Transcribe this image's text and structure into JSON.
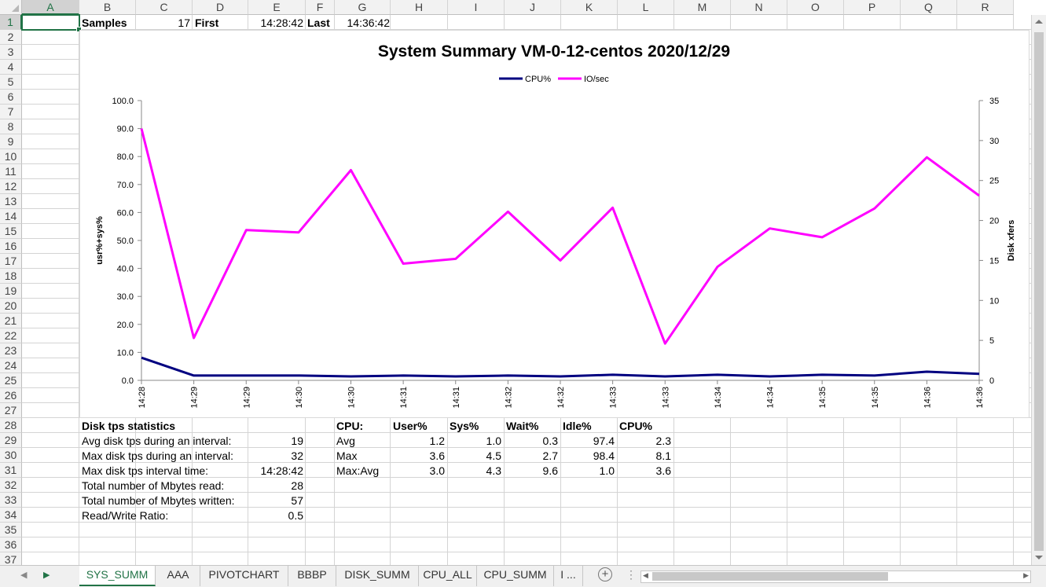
{
  "columns": [
    "A",
    "B",
    "C",
    "D",
    "E",
    "F",
    "G",
    "H",
    "I",
    "J",
    "K",
    "L",
    "M",
    "N",
    "O",
    "P",
    "Q",
    "R"
  ],
  "rows": [
    "1",
    "2",
    "3",
    "4",
    "5",
    "6",
    "7",
    "8",
    "9",
    "10",
    "11",
    "12",
    "13",
    "14",
    "15",
    "16",
    "17",
    "18",
    "19",
    "20",
    "21",
    "22",
    "23",
    "24",
    "25",
    "26",
    "27",
    "28",
    "29",
    "30",
    "31",
    "32",
    "33",
    "34",
    "35",
    "36",
    "37"
  ],
  "row1": {
    "samples_label": "Samples",
    "samples_value": "17",
    "first_label": "First",
    "first_value": "14:28:42",
    "last_label": "Last",
    "last_value": "14:36:42"
  },
  "disk_stats": {
    "title": "Disk tps statistics",
    "items": [
      {
        "label": "Avg disk tps during an interval:",
        "value": "19"
      },
      {
        "label": "Max disk tps during an interval:",
        "value": "32"
      },
      {
        "label": "Max disk tps interval time:",
        "value": "14:28:42"
      },
      {
        "label": "Total number of Mbytes read:",
        "value": "28"
      },
      {
        "label": "Total number of Mbytes written:",
        "value": "57"
      },
      {
        "label": "Read/Write Ratio:",
        "value": "0.5"
      }
    ]
  },
  "cpu_table": {
    "headers": [
      "CPU:",
      "User%",
      "Sys%",
      "Wait%",
      "Idle%",
      "CPU%"
    ],
    "rows": [
      {
        "label": "Avg",
        "values": [
          "1.2",
          "1.0",
          "0.3",
          "97.4",
          "2.3"
        ]
      },
      {
        "label": "Max",
        "values": [
          "3.6",
          "4.5",
          "2.7",
          "98.4",
          "8.1"
        ]
      },
      {
        "label": "Max:Avg",
        "values": [
          "3.0",
          "4.3",
          "9.6",
          "1.0",
          "3.6"
        ]
      }
    ]
  },
  "sheet_tabs": [
    "SYS_SUMM",
    "AAA",
    "PIVOTCHART",
    "BBBP",
    "DISK_SUMM",
    "CPU_ALL",
    "CPU_SUMM",
    "I ..."
  ],
  "active_tab": "SYS_SUMM",
  "colors": {
    "cpu": "#000080",
    "io": "#ff00ff",
    "excel_green": "#217346"
  },
  "chart_data": {
    "type": "line",
    "title": "System Summary VM-0-12-centos  2020/12/29",
    "ylabel": "usr%+sys%",
    "y2label": "Disk xfers",
    "ylim": [
      0,
      100
    ],
    "y2lim": [
      0,
      35
    ],
    "yticks": [
      "0.0",
      "10.0",
      "20.0",
      "30.0",
      "40.0",
      "50.0",
      "60.0",
      "70.0",
      "80.0",
      "90.0",
      "100.0"
    ],
    "y2ticks": [
      "0",
      "5",
      "10",
      "15",
      "20",
      "25",
      "30",
      "35"
    ],
    "legend_position": "top",
    "categories": [
      "14:28",
      "14:29",
      "14:29",
      "14:30",
      "14:30",
      "14:31",
      "14:31",
      "14:32",
      "14:32",
      "14:33",
      "14:33",
      "14:34",
      "14:34",
      "14:35",
      "14:35",
      "14:36",
      "14:36"
    ],
    "series": [
      {
        "name": "CPU%",
        "axis": "left",
        "values": [
          8.1,
          1.7,
          1.7,
          1.7,
          1.4,
          1.7,
          1.4,
          1.7,
          1.4,
          2.0,
          1.4,
          2.0,
          1.4,
          2.0,
          1.7,
          3.1,
          2.3
        ]
      },
      {
        "name": "IO/sec",
        "axis": "right",
        "values": [
          31.5,
          5.3,
          18.8,
          18.5,
          26.3,
          14.6,
          15.2,
          21.1,
          15.0,
          21.6,
          4.6,
          14.2,
          19.0,
          17.9,
          21.5,
          27.9,
          23.1
        ]
      }
    ]
  }
}
